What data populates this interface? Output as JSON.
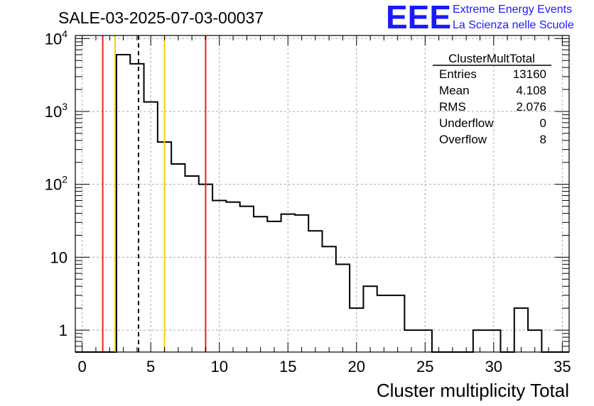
{
  "chart_data": {
    "type": "bar",
    "style": "step-histogram",
    "title": "SALE-03-2025-07-03-00037",
    "xlabel": "Cluster multiplicity Total",
    "ylabel": "",
    "xlim": [
      -0.5,
      35.5
    ],
    "ylim": [
      0.5,
      11000
    ],
    "yscale": "log",
    "grid": true,
    "bin_width": 1,
    "bin_centers": [
      0,
      1,
      2,
      3,
      4,
      5,
      6,
      7,
      8,
      9,
      10,
      11,
      12,
      13,
      14,
      15,
      16,
      17,
      18,
      19,
      20,
      21,
      22,
      23,
      24,
      25,
      26,
      27,
      28,
      29,
      30,
      31,
      32,
      33,
      34,
      35
    ],
    "values": [
      0,
      0,
      0,
      6000,
      4500,
      1350,
      380,
      190,
      130,
      100,
      60,
      57,
      50,
      36,
      31,
      39,
      38,
      23,
      14,
      8,
      2,
      4,
      3,
      3,
      1,
      1,
      0,
      0,
      0,
      1,
      1,
      0,
      2,
      1,
      0,
      0
    ],
    "x_ticks": [
      0,
      5,
      10,
      15,
      20,
      25,
      30,
      35
    ],
    "x_tick_labels": [
      "0",
      "5",
      "10",
      "15",
      "20",
      "25",
      "30",
      "35"
    ],
    "y_ticks": [
      1,
      10,
      100,
      1000,
      10000
    ],
    "y_tick_labels": [
      {
        "base": "1",
        "exp": ""
      },
      {
        "base": "10",
        "exp": ""
      },
      {
        "base": "10",
        "exp": "2"
      },
      {
        "base": "10",
        "exp": "3"
      },
      {
        "base": "10",
        "exp": "4"
      }
    ],
    "vertical_lines": [
      {
        "x": 1.5,
        "color": "#e8231c",
        "style": "solid"
      },
      {
        "x": 2.4,
        "color": "#ffcc00",
        "style": "solid"
      },
      {
        "x": 4.108,
        "color": "#000000",
        "style": "dashed"
      },
      {
        "x": 6.0,
        "color": "#ffcc00",
        "style": "solid"
      },
      {
        "x": 9.0,
        "color": "#e8231c",
        "style": "solid"
      }
    ],
    "legend": "top-right",
    "stats": {
      "name": "ClusterMultTotal",
      "rows": [
        {
          "label": "Entries",
          "value": "13160"
        },
        {
          "label": "Mean",
          "value": "4.108"
        },
        {
          "label": "RMS",
          "value": "2.076"
        },
        {
          "label": "Underflow",
          "value": "0"
        },
        {
          "label": "Overflow",
          "value": "8"
        }
      ]
    }
  },
  "logo": {
    "mark": "EEE",
    "line1": "Extreme Energy Events",
    "line2": "La Scienza nelle Scuole"
  }
}
